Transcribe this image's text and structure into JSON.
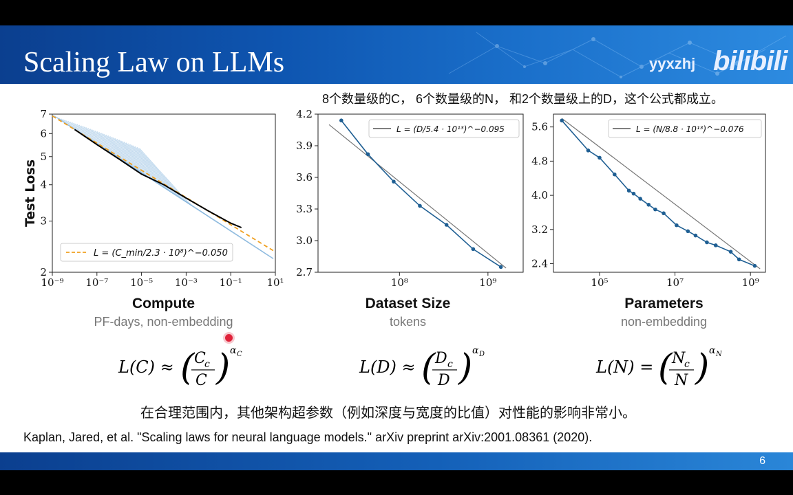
{
  "header": {
    "title": "Scaling Law on LLMs",
    "watermark_user": "yyxzhj",
    "watermark_logo": "bilibili"
  },
  "notes": {
    "top": "8个数量级的C， 6个数量级的N， 和2个数量级上的D，这个公式都成立。",
    "middle": "在合理范围内，其他架构超参数（例如深度与宽度的比值）对性能的影响非常小。",
    "citation": "Kaplan, Jared, et al. \"Scaling laws for neural language models.\" arXiv preprint arXiv:2001.08361 (2020)."
  },
  "panels": {
    "compute": {
      "ylabel": "Test Loss",
      "xlabel": "Compute",
      "xsub": "PF-days, non-embedding"
    },
    "dataset": {
      "xlabel": "Dataset Size",
      "xsub": "tokens"
    },
    "params": {
      "xlabel": "Parameters",
      "xsub": "non-embedding"
    }
  },
  "page_number": "6",
  "colors": {
    "header_blue": "#0e55b0",
    "series_blue": "#1f5f93",
    "fit_orange": "#f0a020"
  },
  "chart_data": [
    {
      "type": "line",
      "xscale": "log",
      "yscale": "log",
      "xlim": [
        1e-09,
        10
      ],
      "ylim": [
        2,
        7
      ],
      "xticks": [
        "10⁻⁹",
        "10⁻⁷",
        "10⁻⁵",
        "10⁻³",
        "10⁻¹",
        "10¹"
      ],
      "yticks": [
        "7",
        "6",
        "5",
        "4",
        "3",
        "2"
      ],
      "ylabel": "Test Loss",
      "xlabel": "Compute",
      "legend": "L = (C_min/2.3 · 10⁸)^−0.050",
      "legend_position": "bottom-left",
      "series": [
        {
          "name": "L = (C_min/2.3 · 10⁸)^−0.050",
          "style": "dashed",
          "x": [
            1e-09,
            10
          ],
          "y": [
            6.9,
            2.35
          ]
        },
        {
          "style": "solid-black",
          "x": [
            1e-08,
            1e-07,
            1e-06,
            1e-05,
            0.0001,
            0.001,
            0.01,
            0.1,
            0.3
          ],
          "y": [
            6.2,
            5.5,
            4.9,
            4.35,
            4.0,
            3.6,
            3.25,
            2.95,
            2.85
          ]
        }
      ]
    },
    {
      "type": "line",
      "xscale": "log",
      "xlim": [
        12000000.0,
        2500000000.0
      ],
      "ylim": [
        2.7,
        4.2
      ],
      "xticks": [
        "10⁸",
        "10⁹"
      ],
      "yticks": [
        "4.2",
        "3.9",
        "3.6",
        "3.3",
        "3.0",
        "2.7"
      ],
      "xlabel": "Dataset Size",
      "legend": "L = (D/5.4 · 10¹³)^−0.095",
      "legend_position": "top-right",
      "series": [
        {
          "x": [
            22000000.0,
            44000000.0,
            86000000.0,
            170000000.0,
            340000000.0,
            680000000.0,
            1400000000.0
          ],
          "y": [
            4.14,
            3.82,
            3.56,
            3.33,
            3.15,
            2.92,
            2.75
          ]
        }
      ]
    },
    {
      "type": "line",
      "xscale": "log",
      "xlim": [
        6000.0,
        2500000000.0
      ],
      "ylim": [
        2.2,
        5.9
      ],
      "xticks": [
        "10⁵",
        "10⁷",
        "10⁹"
      ],
      "yticks": [
        "5.6",
        "4.8",
        "4.0",
        "3.2",
        "2.4"
      ],
      "xlabel": "Parameters",
      "legend": "L = (N/8.8 · 10¹³)^−0.076",
      "legend_position": "top-right",
      "series": [
        {
          "x": [
            10000.0,
            50000.0,
            100000.0,
            250000.0,
            600000.0,
            800000.0,
            1200000.0,
            2000000.0,
            3000000.0,
            5000000.0,
            11000000.0,
            22000000.0,
            35000000.0,
            70000000.0,
            120000000.0,
            300000000.0,
            500000000.0,
            1300000000.0
          ],
          "y": [
            5.75,
            5.05,
            4.88,
            4.49,
            4.11,
            4.04,
            3.92,
            3.78,
            3.67,
            3.58,
            3.3,
            3.16,
            3.06,
            2.9,
            2.83,
            2.68,
            2.5,
            2.35
          ]
        }
      ]
    }
  ]
}
